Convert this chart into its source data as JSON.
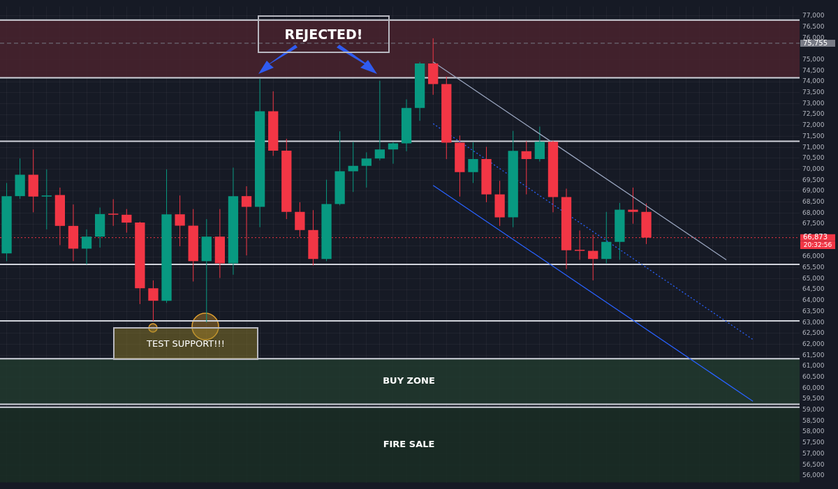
{
  "chart_data": {
    "type": "candlestick",
    "categories": [
      null,
      null,
      null,
      null,
      null,
      null,
      null,
      null,
      null,
      null,
      null,
      null,
      null,
      null,
      null,
      null,
      null,
      null,
      null,
      null,
      null,
      null,
      null,
      null,
      null,
      null,
      null,
      null,
      null,
      null,
      null,
      null,
      null,
      null,
      null,
      null,
      null,
      null,
      null,
      null,
      null,
      null,
      null,
      null,
      null,
      null,
      null,
      null,
      null,
      null,
      null,
      null,
      null,
      null,
      null,
      null,
      null,
      null,
      null,
      null
    ],
    "ohlc": [
      [
        66150,
        69370,
        65800,
        68770
      ],
      [
        68770,
        70490,
        68650,
        69750
      ],
      [
        69750,
        70900,
        68030,
        68750
      ],
      [
        68750,
        69990,
        67250,
        68800
      ],
      [
        68820,
        69160,
        66530,
        67410
      ],
      [
        67410,
        68390,
        65800,
        66370
      ],
      [
        66370,
        67250,
        65650,
        66920
      ],
      [
        66920,
        68250,
        66420,
        67950
      ],
      [
        67950,
        68630,
        67410,
        67920
      ],
      [
        67920,
        68180,
        67100,
        67560
      ],
      [
        67560,
        67600,
        63840,
        64560
      ],
      [
        64560,
        64920,
        63070,
        63990
      ],
      [
        63990,
        69990,
        63890,
        67940
      ],
      [
        67940,
        68800,
        66480,
        67420
      ],
      [
        67420,
        68180,
        64870,
        65800
      ],
      [
        65800,
        67720,
        63000,
        66920
      ],
      [
        66920,
        68180,
        65030,
        65700
      ],
      [
        65700,
        70070,
        65180,
        68770
      ],
      [
        68770,
        69220,
        66060,
        68280
      ],
      [
        68280,
        74130,
        67350,
        72650
      ],
      [
        72650,
        73560,
        70610,
        70850
      ],
      [
        70850,
        71390,
        67720,
        68050
      ],
      [
        68050,
        68490,
        66910,
        67220
      ],
      [
        67220,
        68130,
        65600,
        65900
      ],
      [
        65900,
        69520,
        65800,
        68410
      ],
      [
        68410,
        71730,
        68350,
        69910
      ],
      [
        69910,
        71250,
        68960,
        70150
      ],
      [
        70150,
        70770,
        69160,
        70490
      ],
      [
        70490,
        74040,
        70400,
        70900
      ],
      [
        70900,
        71230,
        70250,
        71180
      ],
      [
        71180,
        73190,
        70820,
        72800
      ],
      [
        72800,
        74900,
        72210,
        74830
      ],
      [
        74830,
        75980,
        73400,
        73890
      ],
      [
        73890,
        74230,
        70460,
        71210
      ],
      [
        71210,
        71540,
        68750,
        69870
      ],
      [
        69870,
        71230,
        69370,
        70460
      ],
      [
        70460,
        71020,
        68490,
        68850
      ],
      [
        68850,
        69470,
        67410,
        67800
      ],
      [
        67800,
        71750,
        67350,
        70840
      ],
      [
        70820,
        71280,
        68850,
        70460
      ],
      [
        70460,
        71950,
        70350,
        71250
      ],
      [
        71250,
        71300,
        68030,
        68730
      ],
      [
        68730,
        69110,
        65440,
        66300
      ],
      [
        66300,
        67200,
        65860,
        66270
      ],
      [
        66270,
        67010,
        64920,
        65900
      ],
      [
        65900,
        68050,
        65700,
        66680
      ],
      [
        66680,
        68460,
        65860,
        68150
      ],
      [
        68150,
        69160,
        67510,
        68050
      ],
      [
        68050,
        68440,
        66580,
        66873
      ],
      null,
      null,
      null,
      null,
      null,
      null,
      null,
      null,
      null,
      null,
      null
    ],
    "colors": [
      "#089981",
      "#089981",
      "#f23645",
      "#089981",
      "#f23645",
      "#f23645",
      "#089981",
      "#089981",
      "#f23645",
      "#f23645",
      "#f23645",
      "#f23645",
      "#089981",
      "#f23645",
      "#f23645",
      "#089981",
      "#f23645",
      "#089981",
      "#f23645",
      "#089981",
      "#f23645",
      "#f23645",
      "#f23645",
      "#f23645",
      "#089981",
      "#089981",
      "#089981",
      "#089981",
      "#089981",
      "#089981",
      "#089981",
      "#089981",
      "#f23645",
      "#f23645",
      "#f23645",
      "#089981",
      "#f23645",
      "#f23645",
      "#089981",
      "#f23645",
      "#089981",
      "#f23645",
      "#f23645",
      "#f23645",
      "#f23645",
      "#089981",
      "#089981",
      "#f23645",
      "#f23645",
      null,
      null,
      null,
      null,
      null,
      null,
      null,
      null,
      null,
      null,
      null
    ],
    "series": [
      {
        "type": "line",
        "color": "#9aa6c0",
        "line_style": "solid",
        "values": [
          null,
          null,
          null,
          null,
          null,
          null,
          null,
          null,
          null,
          null,
          null,
          null,
          null,
          null,
          null,
          null,
          null,
          null,
          null,
          null,
          null,
          null,
          null,
          null,
          null,
          null,
          null,
          null,
          null,
          null,
          null,
          null,
          74900,
          null,
          null,
          null,
          null,
          null,
          null,
          null,
          null,
          null,
          null,
          null,
          null,
          null,
          null,
          null,
          null,
          null,
          null,
          null,
          null,
          null,
          65860,
          null,
          null,
          null,
          null,
          null
        ]
      },
      {
        "type": "line",
        "color": "#2962ff",
        "line_style": "dotted",
        "values": [
          null,
          null,
          null,
          null,
          null,
          null,
          null,
          null,
          null,
          null,
          null,
          null,
          null,
          null,
          null,
          null,
          null,
          null,
          null,
          null,
          null,
          null,
          null,
          null,
          null,
          null,
          null,
          null,
          null,
          null,
          null,
          null,
          72080,
          null,
          null,
          null,
          null,
          null,
          null,
          null,
          null,
          null,
          null,
          null,
          null,
          null,
          null,
          null,
          null,
          null,
          null,
          null,
          null,
          null,
          null,
          null,
          62220,
          null,
          null,
          null
        ]
      },
      {
        "type": "line",
        "color": "#2962ff",
        "line_style": "solid",
        "values": [
          null,
          null,
          null,
          null,
          null,
          null,
          null,
          null,
          null,
          null,
          null,
          null,
          null,
          null,
          null,
          null,
          null,
          null,
          null,
          null,
          null,
          null,
          null,
          null,
          null,
          null,
          null,
          null,
          null,
          null,
          null,
          null,
          69260,
          null,
          null,
          null,
          null,
          null,
          null,
          null,
          null,
          null,
          null,
          null,
          null,
          null,
          null,
          null,
          null,
          null,
          null,
          null,
          null,
          null,
          null,
          null,
          59400,
          null,
          null,
          null
        ]
      }
    ],
    "bands": [
      {
        "axis": "y",
        "from": 74180,
        "to": 76810,
        "color": "#4a232e"
      },
      {
        "axis": "y",
        "from": 59260,
        "to": 61340,
        "label": "BUY ZONE",
        "color": "#213b2e"
      },
      {
        "axis": "y",
        "from": 55690,
        "to": 59130,
        "label": "FIRE SALE",
        "color": "#1a2e25"
      }
    ],
    "ref_lines": [
      {
        "axis": "y",
        "value": 76810,
        "color": "#d1d4dc"
      },
      {
        "axis": "y",
        "value": 74180,
        "color": "#d1d4dc"
      },
      {
        "axis": "y",
        "value": 71280,
        "color": "#d1d4dc"
      },
      {
        "axis": "y",
        "value": 65650,
        "color": "#d1d4dc"
      },
      {
        "axis": "y",
        "value": 63070,
        "color": "#d1d4dc"
      },
      {
        "axis": "y",
        "value": 61340,
        "color": "#d1d4dc"
      },
      {
        "axis": "y",
        "value": 59260,
        "color": "#d1d4dc"
      },
      {
        "axis": "y",
        "value": 59130,
        "color": "#d1d4dc"
      },
      {
        "axis": "y",
        "value": 75755,
        "label": "75,755",
        "color": "#787b86",
        "line_style": "dashed"
      },
      {
        "axis": "y",
        "value": 66873,
        "label": "66,873",
        "color": "#f23645",
        "line_style": "dotted"
      }
    ],
    "annotations": [
      "REJECTED!",
      "TEST SUPPORT!!!",
      "20:32:56"
    ],
    "ylim": [
      55690,
      77430
    ],
    "yticks": [
      {
        "value": 56000,
        "label": "56,000"
      },
      {
        "value": 56500,
        "label": "56,500"
      },
      {
        "value": 57000,
        "label": "57,000"
      },
      {
        "value": 57500,
        "label": "57,500"
      },
      {
        "value": 58000,
        "label": "58,000"
      },
      {
        "value": 58500,
        "label": "58,500"
      },
      {
        "value": 59000,
        "label": "59,000"
      },
      {
        "value": 59500,
        "label": "59,500"
      },
      {
        "value": 60000,
        "label": "60,000"
      },
      {
        "value": 60500,
        "label": "60,500"
      },
      {
        "value": 61000,
        "label": "61,000"
      },
      {
        "value": 61500,
        "label": "61,500"
      },
      {
        "value": 62000,
        "label": "62,000"
      },
      {
        "value": 62500,
        "label": "62,500"
      },
      {
        "value": 63000,
        "label": "63,000"
      },
      {
        "value": 63500,
        "label": "63,500"
      },
      {
        "value": 64000,
        "label": "64,000"
      },
      {
        "value": 64500,
        "label": "64,500"
      },
      {
        "value": 65000,
        "label": "65,000"
      },
      {
        "value": 65500,
        "label": "65,500"
      },
      {
        "value": 66000,
        "label": "66,000"
      },
      {
        "value": 66500,
        "label": null
      },
      {
        "value": 67000,
        "label": null
      },
      {
        "value": 67500,
        "label": "67,500"
      },
      {
        "value": 68000,
        "label": "68,000"
      },
      {
        "value": 68500,
        "label": "68,500"
      },
      {
        "value": 69000,
        "label": "69,000"
      },
      {
        "value": 69500,
        "label": "69,500"
      },
      {
        "value": 70000,
        "label": "70,000"
      },
      {
        "value": 70500,
        "label": "70,500"
      },
      {
        "value": 71000,
        "label": "71,000"
      },
      {
        "value": 71500,
        "label": "71,500"
      },
      {
        "value": 72000,
        "label": "72,000"
      },
      {
        "value": 72500,
        "label": "72,500"
      },
      {
        "value": 73000,
        "label": "73,000"
      },
      {
        "value": 73500,
        "label": "73,500"
      },
      {
        "value": 74000,
        "label": "74,000"
      },
      {
        "value": 74500,
        "label": "74,500"
      },
      {
        "value": 75000,
        "label": "75,000"
      },
      {
        "value": 76000,
        "label": "76,000"
      },
      {
        "value": 76500,
        "label": "76,500"
      },
      {
        "value": 77000,
        "label": "77,000"
      }
    ],
    "grid": true,
    "legend": false,
    "tick_labels": "y"
  }
}
